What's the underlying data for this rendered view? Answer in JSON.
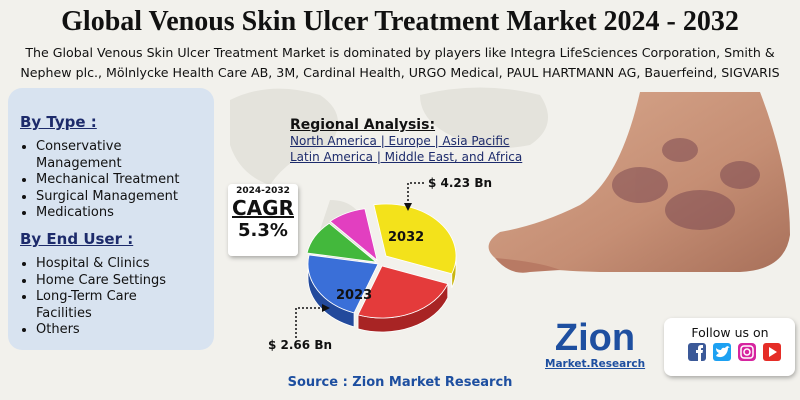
{
  "header": {
    "title": "Global Venous Skin Ulcer Treatment Market 2024 - 2032",
    "description": "The Global Venous Skin Ulcer Treatment Market is dominated by players like Integra LifeSciences Corporation, Smith & Nephew plc., Mölnlycke Health Care AB, 3M, Cardinal Health, URGO Medical, PAUL HARTMANN AG, Bauerfeind, SIGVARIS"
  },
  "segments": {
    "by_type": {
      "heading": "By Type :",
      "items": [
        "Conservative Management",
        "Mechanical Treatment",
        "Surgical Management",
        "Medications"
      ]
    },
    "by_end_user": {
      "heading": "By End User :",
      "items": [
        "Hospital & Clinics",
        "Home Care Settings",
        "Long-Term Care Facilities",
        "Others"
      ]
    }
  },
  "regional": {
    "heading": "Regional Analysis:",
    "lines": [
      "North America | Europe | Asia Pacific",
      "Latin America | Middle East, and Africa"
    ]
  },
  "cagr": {
    "period": "2024-2032",
    "label": "CAGR",
    "value": "5.3%"
  },
  "market_size": [
    {
      "year": "2032",
      "value": "$ 4.23 Bn"
    },
    {
      "year": "2023",
      "value": "$ 2.66 Bn"
    }
  ],
  "logo": {
    "name": "Zion",
    "sub": "Market.Research"
  },
  "social": {
    "heading": "Follow us on"
  },
  "source": "Source : Zion Market Research"
}
